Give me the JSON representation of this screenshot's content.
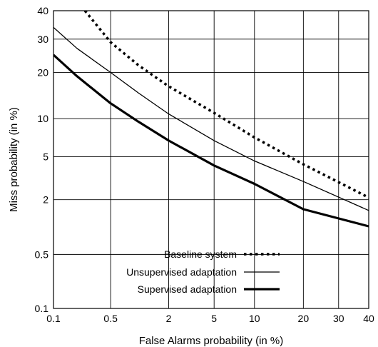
{
  "chart_data": {
    "type": "line",
    "title": "",
    "xlabel": "False Alarms probability (in %)",
    "ylabel": "Miss probability (in %)",
    "xscale": "probit",
    "yscale": "probit",
    "xlim": [
      0.1,
      40
    ],
    "ylim": [
      0.1,
      40
    ],
    "grid": true,
    "legend_position": "bottom-center",
    "x_ticks": [
      0.1,
      0.5,
      2,
      5,
      10,
      20,
      30,
      40
    ],
    "x_tick_labels": [
      "0.1",
      "0.5",
      "2",
      "5",
      "10",
      "20",
      "30",
      "40"
    ],
    "y_ticks": [
      0.1,
      0.5,
      2,
      5,
      10,
      20,
      30,
      40
    ],
    "y_tick_labels": [
      "0.1",
      "0.5",
      "2",
      "5",
      "10",
      "20",
      "30",
      "40"
    ],
    "series": [
      {
        "name": "Baseline system",
        "style": "dotted",
        "color": "#000000",
        "points": [
          [
            0.25,
            40
          ],
          [
            0.5,
            29
          ],
          [
            1,
            22
          ],
          [
            2,
            16.5
          ],
          [
            5,
            11
          ],
          [
            10,
            7.2
          ],
          [
            20,
            4.3
          ],
          [
            40,
            2.1
          ]
        ]
      },
      {
        "name": "Unsupervised adaptation",
        "style": "thin",
        "color": "#000000",
        "points": [
          [
            0.1,
            34
          ],
          [
            0.2,
            27
          ],
          [
            0.5,
            20
          ],
          [
            1,
            15
          ],
          [
            2,
            10.8
          ],
          [
            5,
            6.8
          ],
          [
            10,
            4.6
          ],
          [
            20,
            3.0
          ],
          [
            40,
            1.55
          ]
        ]
      },
      {
        "name": "Supervised adaptation",
        "style": "thick",
        "color": "#000000",
        "points": [
          [
            0.1,
            25
          ],
          [
            0.2,
            19
          ],
          [
            0.5,
            12.8
          ],
          [
            1,
            9.5
          ],
          [
            2,
            6.8
          ],
          [
            5,
            4.2
          ],
          [
            10,
            2.85
          ],
          [
            20,
            1.6
          ],
          [
            40,
            1.05
          ]
        ]
      }
    ]
  }
}
